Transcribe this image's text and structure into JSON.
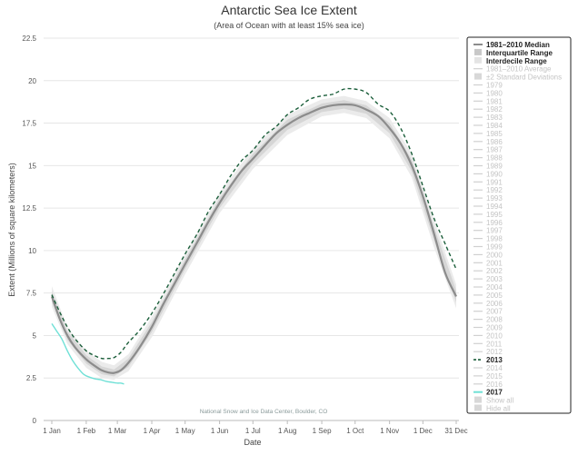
{
  "chart_data": {
    "type": "line",
    "title": "Antarctic Sea Ice Extent",
    "subtitle": "(Area of Ocean with at least 15% sea ice)",
    "xlabel": "Date",
    "ylabel": "Extent (Millions of square kilometers)",
    "credit": "National Snow and Ice Data Center, Boulder, CO",
    "x_unit": "day-of-year",
    "xlim": [
      1,
      365
    ],
    "ylim": [
      0,
      22.5
    ],
    "x_ticks": [
      {
        "label": "1 Jan",
        "day": 1
      },
      {
        "label": "1 Feb",
        "day": 32
      },
      {
        "label": "1 Mar",
        "day": 60
      },
      {
        "label": "1 Apr",
        "day": 91
      },
      {
        "label": "1 May",
        "day": 121
      },
      {
        "label": "1 Jun",
        "day": 152
      },
      {
        "label": "1 Jul",
        "day": 182
      },
      {
        "label": "1 Aug",
        "day": 213
      },
      {
        "label": "1 Sep",
        "day": 244
      },
      {
        "label": "1 Oct",
        "day": 274
      },
      {
        "label": "1 Nov",
        "day": 305
      },
      {
        "label": "1 Dec",
        "day": 335
      },
      {
        "label": "31 Dec",
        "day": 365
      }
    ],
    "y_ticks": [
      "0",
      "2.5",
      "5",
      "7.5",
      "10",
      "12.5",
      "15",
      "17.5",
      "20",
      "22.5"
    ],
    "y_tick_values": [
      0,
      2.5,
      5,
      7.5,
      10,
      12.5,
      15,
      17.5,
      20,
      22.5
    ],
    "grid": true,
    "legend_position": "right",
    "median": {
      "name": "1981–2010 Median",
      "color": "#8c8c8c",
      "points": [
        [
          1,
          7.3
        ],
        [
          8,
          6.0
        ],
        [
          15,
          5.0
        ],
        [
          22,
          4.3
        ],
        [
          32,
          3.6
        ],
        [
          40,
          3.2
        ],
        [
          46,
          2.95
        ],
        [
          52,
          2.82
        ],
        [
          57,
          2.8
        ],
        [
          63,
          2.95
        ],
        [
          70,
          3.4
        ],
        [
          80,
          4.3
        ],
        [
          91,
          5.5
        ],
        [
          101,
          6.8
        ],
        [
          111,
          8.0
        ],
        [
          121,
          9.2
        ],
        [
          132,
          10.5
        ],
        [
          142,
          11.7
        ],
        [
          152,
          12.8
        ],
        [
          162,
          13.8
        ],
        [
          172,
          14.7
        ],
        [
          182,
          15.4
        ],
        [
          193,
          16.2
        ],
        [
          203,
          16.9
        ],
        [
          213,
          17.4
        ],
        [
          223,
          17.8
        ],
        [
          233,
          18.1
        ],
        [
          244,
          18.4
        ],
        [
          254,
          18.55
        ],
        [
          264,
          18.6
        ],
        [
          274,
          18.55
        ],
        [
          284,
          18.3
        ],
        [
          295,
          17.9
        ],
        [
          305,
          17.2
        ],
        [
          315,
          16.3
        ],
        [
          325,
          15.0
        ],
        [
          335,
          13.2
        ],
        [
          345,
          11.0
        ],
        [
          355,
          8.7
        ],
        [
          365,
          7.3
        ]
      ]
    },
    "interquartile_band": {
      "lower": [
        [
          1,
          7.0
        ],
        [
          15,
          4.75
        ],
        [
          32,
          3.35
        ],
        [
          46,
          2.72
        ],
        [
          57,
          2.6
        ],
        [
          70,
          3.15
        ],
        [
          91,
          5.2
        ],
        [
          121,
          8.9
        ],
        [
          152,
          12.5
        ],
        [
          182,
          15.1
        ],
        [
          213,
          17.1
        ],
        [
          244,
          18.15
        ],
        [
          264,
          18.35
        ],
        [
          284,
          18.05
        ],
        [
          305,
          16.9
        ],
        [
          325,
          14.65
        ],
        [
          345,
          10.6
        ],
        [
          365,
          6.95
        ]
      ],
      "upper": [
        [
          1,
          7.6
        ],
        [
          15,
          5.25
        ],
        [
          32,
          3.85
        ],
        [
          46,
          3.18
        ],
        [
          57,
          3.0
        ],
        [
          70,
          3.65
        ],
        [
          91,
          5.8
        ],
        [
          121,
          9.5
        ],
        [
          152,
          13.1
        ],
        [
          182,
          15.7
        ],
        [
          213,
          17.7
        ],
        [
          244,
          18.65
        ],
        [
          264,
          18.85
        ],
        [
          284,
          18.55
        ],
        [
          305,
          17.5
        ],
        [
          325,
          15.35
        ],
        [
          345,
          11.4
        ],
        [
          365,
          7.65
        ]
      ]
    },
    "interdecile_band": {
      "lower": [
        [
          1,
          6.7
        ],
        [
          15,
          4.5
        ],
        [
          32,
          3.1
        ],
        [
          46,
          2.5
        ],
        [
          57,
          2.4
        ],
        [
          70,
          2.9
        ],
        [
          91,
          4.9
        ],
        [
          121,
          8.6
        ],
        [
          152,
          12.2
        ],
        [
          182,
          14.8
        ],
        [
          213,
          16.8
        ],
        [
          244,
          17.9
        ],
        [
          264,
          18.1
        ],
        [
          284,
          17.8
        ],
        [
          305,
          16.6
        ],
        [
          325,
          14.3
        ],
        [
          345,
          10.2
        ],
        [
          365,
          6.6
        ]
      ],
      "upper": [
        [
          1,
          7.9
        ],
        [
          15,
          5.5
        ],
        [
          32,
          4.1
        ],
        [
          46,
          3.45
        ],
        [
          57,
          3.25
        ],
        [
          70,
          3.9
        ],
        [
          91,
          6.1
        ],
        [
          121,
          9.8
        ],
        [
          152,
          13.4
        ],
        [
          182,
          16.0
        ],
        [
          213,
          18.0
        ],
        [
          244,
          18.9
        ],
        [
          264,
          19.1
        ],
        [
          284,
          18.8
        ],
        [
          305,
          17.8
        ],
        [
          325,
          15.7
        ],
        [
          345,
          11.8
        ],
        [
          365,
          8.0
        ]
      ]
    },
    "series": [
      {
        "name": "2013",
        "color": "#1b5e3a",
        "style": "dashed",
        "points": [
          [
            1,
            7.4
          ],
          [
            8,
            6.4
          ],
          [
            15,
            5.5
          ],
          [
            22,
            4.8
          ],
          [
            32,
            4.1
          ],
          [
            40,
            3.8
          ],
          [
            46,
            3.65
          ],
          [
            52,
            3.65
          ],
          [
            57,
            3.7
          ],
          [
            63,
            4.0
          ],
          [
            70,
            4.6
          ],
          [
            80,
            5.3
          ],
          [
            91,
            6.3
          ],
          [
            101,
            7.4
          ],
          [
            111,
            8.6
          ],
          [
            121,
            9.8
          ],
          [
            132,
            11.0
          ],
          [
            142,
            12.3
          ],
          [
            152,
            13.3
          ],
          [
            162,
            14.4
          ],
          [
            172,
            15.3
          ],
          [
            182,
            15.9
          ],
          [
            193,
            16.8
          ],
          [
            203,
            17.3
          ],
          [
            213,
            18.0
          ],
          [
            223,
            18.4
          ],
          [
            233,
            18.9
          ],
          [
            244,
            19.1
          ],
          [
            254,
            19.2
          ],
          [
            264,
            19.5
          ],
          [
            274,
            19.5
          ],
          [
            284,
            19.3
          ],
          [
            295,
            18.6
          ],
          [
            305,
            18.2
          ],
          [
            315,
            17.2
          ],
          [
            325,
            15.7
          ],
          [
            335,
            13.8
          ],
          [
            345,
            11.9
          ],
          [
            355,
            10.4
          ],
          [
            365,
            8.9
          ]
        ]
      },
      {
        "name": "2017",
        "color": "#6fe0d6",
        "style": "solid",
        "points": [
          [
            1,
            5.7
          ],
          [
            5,
            5.3
          ],
          [
            10,
            4.8
          ],
          [
            15,
            4.1
          ],
          [
            20,
            3.5
          ],
          [
            25,
            3.05
          ],
          [
            30,
            2.7
          ],
          [
            35,
            2.55
          ],
          [
            40,
            2.45
          ],
          [
            45,
            2.4
          ],
          [
            50,
            2.3
          ],
          [
            55,
            2.25
          ],
          [
            60,
            2.2
          ],
          [
            63,
            2.2
          ],
          [
            66,
            2.15
          ]
        ]
      }
    ],
    "legend": [
      {
        "label": "1981–2010 Median",
        "swatch": "line",
        "color": "#8c8c8c",
        "active": true
      },
      {
        "label": "Interquartile Range",
        "swatch": "box",
        "color": "#c8c8c8",
        "active": true
      },
      {
        "label": "Interdecile Range",
        "swatch": "box",
        "color": "#e4e4e4",
        "active": true
      },
      {
        "label": "1981–2010 Average",
        "swatch": "line",
        "color": "#d0d0d0",
        "active": false
      },
      {
        "label": "±2 Standard Deviations",
        "swatch": "box",
        "color": "#d8d8d8",
        "active": false
      },
      {
        "label": "1979",
        "swatch": "line",
        "color": "#d0d0d0",
        "active": false
      },
      {
        "label": "1980",
        "swatch": "line",
        "color": "#d0d0d0",
        "active": false
      },
      {
        "label": "1981",
        "swatch": "line",
        "color": "#d0d0d0",
        "active": false
      },
      {
        "label": "1982",
        "swatch": "line",
        "color": "#d0d0d0",
        "active": false
      },
      {
        "label": "1983",
        "swatch": "line",
        "color": "#d0d0d0",
        "active": false
      },
      {
        "label": "1984",
        "swatch": "line",
        "color": "#d0d0d0",
        "active": false
      },
      {
        "label": "1985",
        "swatch": "line",
        "color": "#d0d0d0",
        "active": false
      },
      {
        "label": "1986",
        "swatch": "line",
        "color": "#d0d0d0",
        "active": false
      },
      {
        "label": "1987",
        "swatch": "line",
        "color": "#d0d0d0",
        "active": false
      },
      {
        "label": "1988",
        "swatch": "line",
        "color": "#d0d0d0",
        "active": false
      },
      {
        "label": "1989",
        "swatch": "line",
        "color": "#d0d0d0",
        "active": false
      },
      {
        "label": "1990",
        "swatch": "line",
        "color": "#d0d0d0",
        "active": false
      },
      {
        "label": "1991",
        "swatch": "line",
        "color": "#d0d0d0",
        "active": false
      },
      {
        "label": "1992",
        "swatch": "line",
        "color": "#d0d0d0",
        "active": false
      },
      {
        "label": "1993",
        "swatch": "line",
        "color": "#d0d0d0",
        "active": false
      },
      {
        "label": "1994",
        "swatch": "line",
        "color": "#d0d0d0",
        "active": false
      },
      {
        "label": "1995",
        "swatch": "line",
        "color": "#d0d0d0",
        "active": false
      },
      {
        "label": "1996",
        "swatch": "line",
        "color": "#d0d0d0",
        "active": false
      },
      {
        "label": "1997",
        "swatch": "line",
        "color": "#d0d0d0",
        "active": false
      },
      {
        "label": "1998",
        "swatch": "line",
        "color": "#d0d0d0",
        "active": false
      },
      {
        "label": "1999",
        "swatch": "line",
        "color": "#d0d0d0",
        "active": false
      },
      {
        "label": "2000",
        "swatch": "line",
        "color": "#d0d0d0",
        "active": false
      },
      {
        "label": "2001",
        "swatch": "line",
        "color": "#d0d0d0",
        "active": false
      },
      {
        "label": "2002",
        "swatch": "line",
        "color": "#d0d0d0",
        "active": false
      },
      {
        "label": "2003",
        "swatch": "line",
        "color": "#d0d0d0",
        "active": false
      },
      {
        "label": "2004",
        "swatch": "line",
        "color": "#d0d0d0",
        "active": false
      },
      {
        "label": "2005",
        "swatch": "line",
        "color": "#d0d0d0",
        "active": false
      },
      {
        "label": "2006",
        "swatch": "line",
        "color": "#d0d0d0",
        "active": false
      },
      {
        "label": "2007",
        "swatch": "line",
        "color": "#d0d0d0",
        "active": false
      },
      {
        "label": "2008",
        "swatch": "line",
        "color": "#d0d0d0",
        "active": false
      },
      {
        "label": "2009",
        "swatch": "line",
        "color": "#d0d0d0",
        "active": false
      },
      {
        "label": "2010",
        "swatch": "line",
        "color": "#d0d0d0",
        "active": false
      },
      {
        "label": "2011",
        "swatch": "line",
        "color": "#d0d0d0",
        "active": false
      },
      {
        "label": "2012",
        "swatch": "line",
        "color": "#d0d0d0",
        "active": false
      },
      {
        "label": "2013",
        "swatch": "dash",
        "color": "#1b5e3a",
        "active": true
      },
      {
        "label": "2014",
        "swatch": "line",
        "color": "#d0d0d0",
        "active": false
      },
      {
        "label": "2015",
        "swatch": "line",
        "color": "#d0d0d0",
        "active": false
      },
      {
        "label": "2016",
        "swatch": "line",
        "color": "#d0d0d0",
        "active": false
      },
      {
        "label": "2017",
        "swatch": "line",
        "color": "#6fe0d6",
        "active": true
      },
      {
        "label": "Show all",
        "swatch": "box",
        "color": "#d8d8d8",
        "active": false
      },
      {
        "label": "Hide all",
        "swatch": "box",
        "color": "#d8d8d8",
        "active": false
      }
    ]
  }
}
